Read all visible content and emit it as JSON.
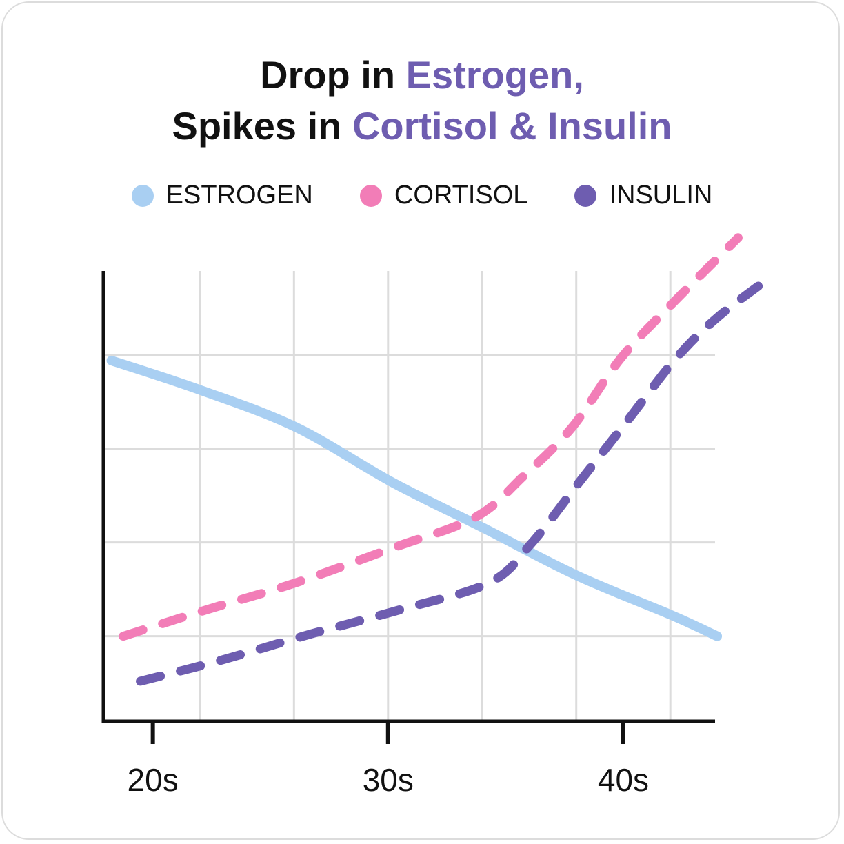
{
  "chart_data": {
    "type": "line",
    "title_lines": [
      [
        {
          "text": "Drop in ",
          "color": "#111111"
        },
        {
          "text": "Estrogen,",
          "color": "#6e5db0"
        }
      ],
      [
        {
          "text": "Spikes in ",
          "color": "#111111"
        },
        {
          "text": "Cortisol & Insulin",
          "color": "#6e5db0"
        }
      ]
    ],
    "xlim": [
      17.9,
      43.9
    ],
    "xticks": [
      {
        "value": 20,
        "label": "20s"
      },
      {
        "value": 30,
        "label": "30s"
      },
      {
        "value": 40,
        "label": "40s"
      }
    ],
    "xgrid": [
      22,
      26,
      30,
      34,
      38,
      42
    ],
    "ylim": [
      0.1,
      5.3
    ],
    "yticks": [
      1,
      2,
      3,
      4
    ],
    "show_ytick_labels": false,
    "grid": true,
    "series": [
      {
        "name": "ESTROGEN",
        "color": "#a9cff2",
        "dash": false,
        "x": [
          18.24,
          21.97,
          26.08,
          30.19,
          34.01,
          38.0,
          42.0,
          43.99
        ],
        "values": [
          3.94,
          3.63,
          3.23,
          2.64,
          2.16,
          1.65,
          1.23,
          1.0
        ]
      },
      {
        "name": "CORTISOL",
        "color": "#f27db7",
        "dash": true,
        "x": [
          18.74,
          22.26,
          26.08,
          30.19,
          33.72,
          35.77,
          37.83,
          39.88,
          42.09,
          44.88
        ],
        "values": [
          1.0,
          1.28,
          1.57,
          1.94,
          2.27,
          2.71,
          3.23,
          3.96,
          4.55,
          5.25
        ]
      },
      {
        "name": "INSULIN",
        "color": "#6e5db0",
        "dash": true,
        "x": [
          19.47,
          22.85,
          26.67,
          30.48,
          34.3,
          36.06,
          38.12,
          40.18,
          42.23,
          44.0,
          46.2
        ],
        "values": [
          0.52,
          0.74,
          1.02,
          1.28,
          1.57,
          1.98,
          2.64,
          3.3,
          3.96,
          4.4,
          4.82
        ]
      }
    ]
  }
}
